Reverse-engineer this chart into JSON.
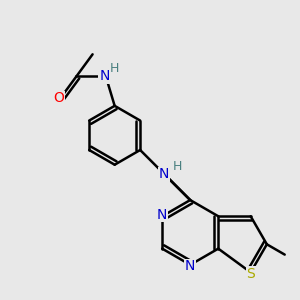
{
  "bg_color": "#e8e8e8",
  "atom_colors": {
    "C": "#000000",
    "N": "#0000cc",
    "O": "#ff0000",
    "S": "#aaaa00",
    "H": "#4a8080"
  },
  "bond_color": "#000000",
  "bond_width": 1.8,
  "font_size_atom": 10,
  "font_size_h": 9
}
